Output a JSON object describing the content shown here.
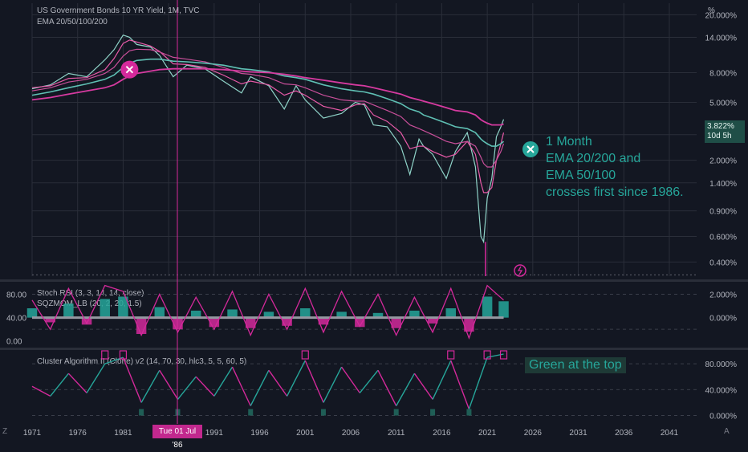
{
  "header": {
    "title": "US Government Bonds 10 YR Yield, 1M, TVC",
    "indicator": "EMA 20/50/100/200",
    "unit": "%"
  },
  "price_badge": {
    "value": "3.822%",
    "countdown": "10d 5h"
  },
  "crosshair_date": "Tue 01 Jul '86",
  "corner_left": "Z",
  "corner_right": "A",
  "annotations": {
    "main": [
      "1 Month",
      "EMA 20/200 and",
      "EMA 50/100",
      "crosses first since 1986."
    ],
    "cluster": "Green at the top"
  },
  "colors": {
    "background": "#131722",
    "teal": "#26a69a",
    "magenta": "#d4299b",
    "ema_pink": "#e040a0",
    "ema_teal": "#4db6ac",
    "grid": "#2a2e39"
  },
  "chart_data": [
    {
      "type": "line",
      "title": "US Government Bonds 10 YR Yield, 1M, TVC",
      "y_scale": "log",
      "y_ticks": [
        "20.000%",
        "14.000%",
        "8.000%",
        "5.000%",
        "3.000%",
        "2.000%",
        "1.400%",
        "0.900%",
        "0.600%",
        "0.400%"
      ],
      "y_tick_values": [
        20,
        14,
        8,
        5,
        3,
        2,
        1.4,
        0.9,
        0.6,
        0.4
      ],
      "x_ticks": [
        "1971",
        "1976",
        "1981",
        "1986",
        "1991",
        "1996",
        "2001",
        "2006",
        "2011",
        "2016",
        "2021",
        "2026",
        "2031",
        "2036",
        "2041"
      ],
      "x_tick_values": [
        1971,
        1976,
        1981,
        1986,
        1991,
        1996,
        2001,
        2006,
        2011,
        2016,
        2021,
        2026,
        2031,
        2036,
        2041
      ],
      "xlim": [
        1971,
        2044
      ],
      "ylim": [
        0.32,
        24
      ],
      "x": [
        1971,
        1973,
        1975,
        1977,
        1979,
        1980,
        1981,
        1981.7,
        1982.5,
        1984,
        1985,
        1986.5,
        1988,
        1990,
        1992,
        1994,
        1995,
        1997,
        1998.7,
        2000,
        2001,
        2003,
        2005,
        2006.5,
        2007.5,
        2008.5,
        2010,
        2011.5,
        2012.5,
        2013.5,
        2014,
        2015,
        2016.5,
        2017.5,
        2018.8,
        2019.7,
        2020.3,
        2020.6,
        2021,
        2021.5,
        2022,
        2022.5,
        2022.8
      ],
      "series": [
        {
          "name": "10Y Yield",
          "values": [
            6.2,
            6.6,
            7.9,
            7.5,
            9.8,
            11.5,
            14.5,
            14,
            12.5,
            12,
            10.5,
            7.5,
            9,
            8.5,
            7,
            5.8,
            7.5,
            6.5,
            4.5,
            6.5,
            5.2,
            3.9,
            4.2,
            5,
            4.8,
            3.5,
            3.4,
            2.5,
            1.6,
            2.8,
            2.5,
            2.2,
            1.5,
            2.3,
            3.1,
            1.8,
            0.6,
            0.55,
            1.1,
            1.5,
            2.9,
            3.4,
            3.82
          ]
        },
        {
          "name": "EMA 20",
          "values": [
            6.3,
            6.5,
            7.3,
            7.4,
            8.4,
            10,
            12.7,
            13.4,
            13,
            12.2,
            11.2,
            9.2,
            9.1,
            8.7,
            7.7,
            6.7,
            7,
            6.6,
            5.6,
            6,
            5.6,
            4.7,
            4.4,
            4.8,
            4.9,
            4.1,
            3.7,
            3.1,
            2.4,
            2.5,
            2.5,
            2.3,
            2.1,
            2.2,
            2.7,
            2.2,
            1.4,
            1.2,
            1.2,
            1.3,
            2,
            2.6,
            3.1
          ]
        },
        {
          "name": "EMA 50",
          "values": [
            6.0,
            6.3,
            6.9,
            7.2,
            7.9,
            8.7,
            10.4,
            11.3,
            11.6,
            11.5,
            11.1,
            10.2,
            9.9,
            9.5,
            8.7,
            7.9,
            7.8,
            7.4,
            6.7,
            6.6,
            6.3,
            5.6,
            5.2,
            5.1,
            5.1,
            4.8,
            4.4,
            4,
            3.5,
            3.3,
            3.2,
            3,
            2.7,
            2.6,
            2.7,
            2.5,
            2.1,
            1.9,
            1.8,
            1.8,
            2,
            2.3,
            2.6
          ]
        },
        {
          "name": "EMA 100",
          "values": [
            5.6,
            5.9,
            6.3,
            6.7,
            7.2,
            7.7,
            8.7,
            9.3,
            9.7,
            9.9,
            9.9,
            9.6,
            9.5,
            9.3,
            9,
            8.5,
            8.4,
            8.1,
            7.6,
            7.4,
            7.2,
            6.6,
            6.2,
            6,
            5.9,
            5.7,
            5.3,
            4.9,
            4.5,
            4.3,
            4.1,
            3.9,
            3.6,
            3.4,
            3.3,
            3.1,
            2.8,
            2.7,
            2.6,
            2.5,
            2.5,
            2.6,
            2.7
          ]
        },
        {
          "name": "EMA 200",
          "values": [
            5.2,
            5.4,
            5.7,
            6,
            6.3,
            6.6,
            7.2,
            7.6,
            7.9,
            8.2,
            8.4,
            8.5,
            8.5,
            8.5,
            8.4,
            8.2,
            8.1,
            8,
            7.8,
            7.6,
            7.4,
            7.1,
            6.8,
            6.6,
            6.5,
            6.3,
            6,
            5.7,
            5.4,
            5.2,
            5.1,
            4.9,
            4.6,
            4.4,
            4.3,
            4.1,
            3.8,
            3.7,
            3.6,
            3.5,
            3.5,
            3.5,
            3.55
          ]
        }
      ]
    },
    {
      "type": "line",
      "title": "Stoch RSI (3, 3, 14, 14, close)",
      "subtitle": "SQZMOM_LB (20, 2, 20, 1.5)",
      "y_ticks_left": [
        "80.00",
        "40.00",
        "0.00"
      ],
      "y_ticks_left_values": [
        80,
        40,
        0
      ],
      "y_ticks_right": [
        "2.000%",
        "0.000%"
      ],
      "y_ticks_right_values": [
        2,
        0
      ],
      "ylim": [
        -10,
        100
      ],
      "x": [
        1971,
        1973,
        1975,
        1977,
        1979,
        1981,
        1983,
        1985,
        1987,
        1989,
        1991,
        1993,
        1995,
        1997,
        1999,
        2001,
        2003,
        2005,
        2007,
        2009,
        2011,
        2013,
        2015,
        2017,
        2019,
        2021,
        2022.8
      ],
      "series": [
        {
          "name": "K",
          "values": [
            70,
            20,
            90,
            30,
            95,
            85,
            10,
            80,
            15,
            75,
            20,
            85,
            10,
            80,
            20,
            90,
            15,
            85,
            25,
            80,
            10,
            75,
            15,
            90,
            5,
            95,
            70
          ]
        },
        {
          "name": "Momentum",
          "values": [
            0.8,
            -0.4,
            1.2,
            -0.6,
            1.6,
            1.8,
            -1.4,
            0.9,
            -1,
            0.6,
            -0.8,
            0.7,
            -0.9,
            0.5,
            -0.7,
            0.8,
            -0.6,
            0.5,
            -0.8,
            0.4,
            -0.9,
            0.6,
            -0.5,
            0.8,
            -1.2,
            1.8,
            1.4
          ]
        }
      ]
    },
    {
      "type": "line",
      "title": "Cluster Algorithm II (Clone) v2 (14, 70, 30, hlc3, 5, 5, 60, 5)",
      "y_ticks": [
        "80.000%",
        "40.000%",
        "0.000%"
      ],
      "y_tick_values": [
        80,
        40,
        0
      ],
      "ylim": [
        -8,
        100
      ],
      "x": [
        1971,
        1973,
        1975,
        1977,
        1979,
        1981,
        1983,
        1985,
        1987,
        1989,
        1991,
        1993,
        1995,
        1997,
        1999,
        2001,
        2003,
        2005,
        2007,
        2009,
        2011,
        2013,
        2015,
        2017,
        2019,
        2021,
        2022.8
      ],
      "series": [
        {
          "name": "Cluster",
          "values": [
            45,
            30,
            65,
            35,
            80,
            90,
            20,
            70,
            25,
            60,
            30,
            75,
            15,
            70,
            30,
            85,
            20,
            75,
            35,
            70,
            15,
            65,
            25,
            85,
            10,
            90,
            95
          ]
        }
      ]
    }
  ]
}
